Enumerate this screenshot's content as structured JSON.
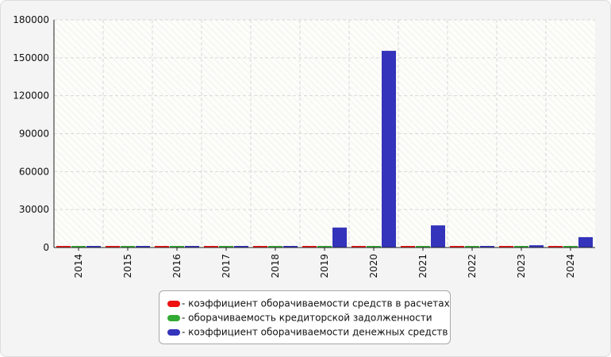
{
  "chart_data": {
    "type": "bar",
    "title": "",
    "xlabel": "",
    "ylabel": "",
    "categories": [
      "2014",
      "2015",
      "2016",
      "2017",
      "2018",
      "2019",
      "2020",
      "2021",
      "2022",
      "2023",
      "2024"
    ],
    "ylim": [
      0,
      180000
    ],
    "yticks": [
      0,
      30000,
      60000,
      90000,
      120000,
      150000,
      180000
    ],
    "grid": true,
    "legend_position": "bottom",
    "series": [
      {
        "name": "- коэффициент оборачиваемости средств в расчетах",
        "color": "#ee1111",
        "values": [
          400,
          350,
          300,
          300,
          450,
          400,
          350,
          400,
          300,
          300,
          350
        ]
      },
      {
        "name": "- оборачиваемость кредиторской задолженности",
        "color": "#33aa33",
        "values": [
          150,
          150,
          150,
          150,
          150,
          150,
          150,
          150,
          150,
          150,
          150
        ]
      },
      {
        "name": "- коэффициент оборачиваемости денежных средств",
        "color": "#3333bb",
        "values": [
          300,
          250,
          200,
          200,
          250,
          15800,
          155500,
          17500,
          1200,
          1800,
          8200
        ]
      }
    ]
  }
}
